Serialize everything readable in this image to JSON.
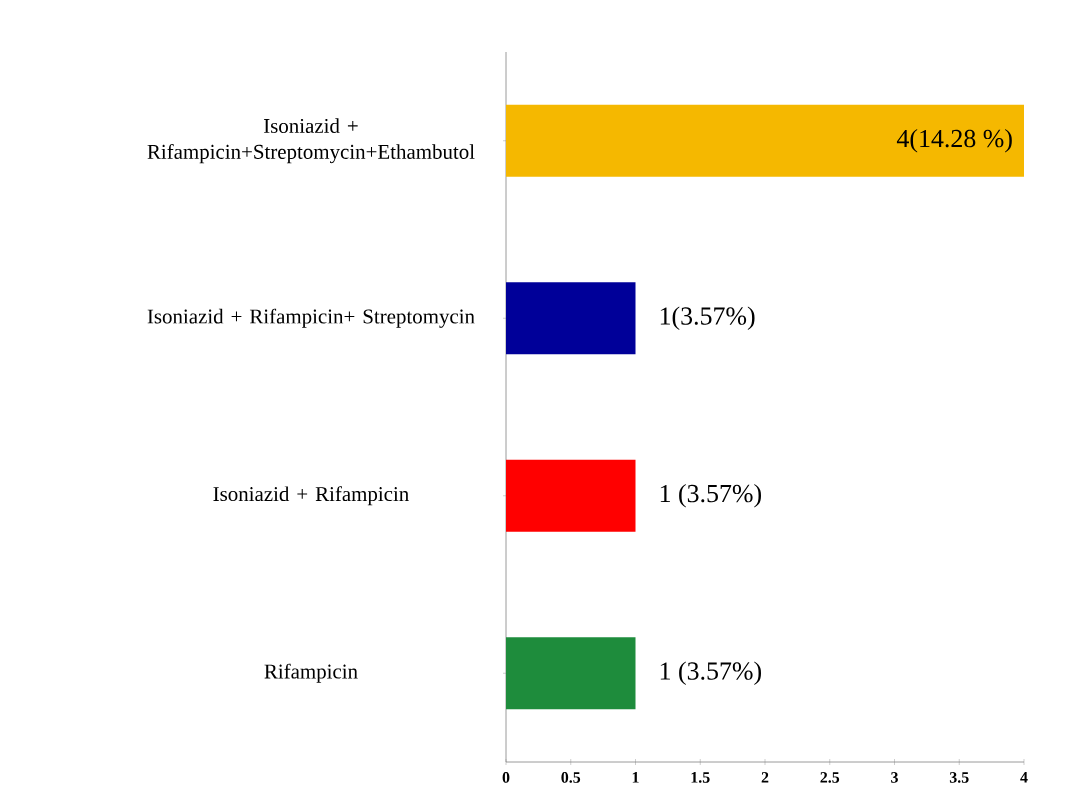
{
  "chart_data": {
    "type": "bar",
    "orientation": "horizontal",
    "categories": [
      "Isoniazid + Rifampicin+Streptomycin+Ethambutol",
      "Isoniazid + Rifampicin+ Streptomycin",
      "Isoniazid + Rifampicin",
      "Rifampicin"
    ],
    "values": [
      4,
      1,
      1,
      1
    ],
    "colors": [
      "#f5b800",
      "#000099",
      "#ff0000",
      "#1e8c3c"
    ],
    "value_labels": [
      "4(14.28 %)",
      "1(3.57%)",
      "1 (3.57%)",
      "1 (3.57%)"
    ],
    "xlim": [
      0,
      4
    ],
    "xticks": [
      0,
      0.5,
      1,
      1.5,
      2,
      2.5,
      3,
      3.5,
      4
    ],
    "grid": false
  }
}
